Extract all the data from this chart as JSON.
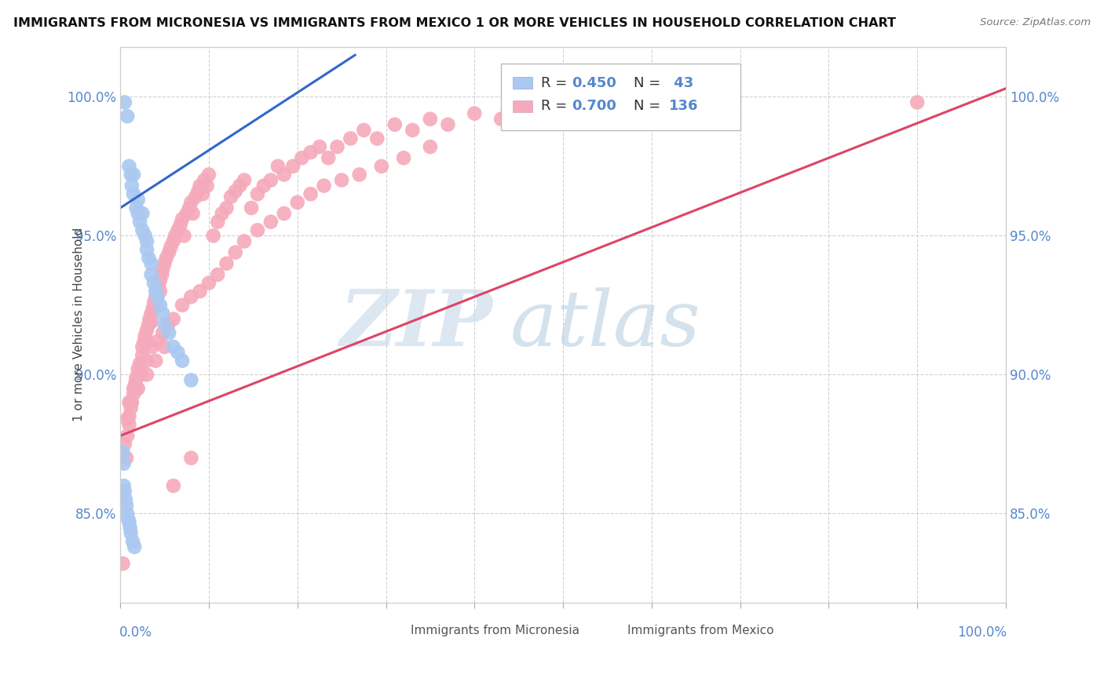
{
  "title": "IMMIGRANTS FROM MICRONESIA VS IMMIGRANTS FROM MEXICO 1 OR MORE VEHICLES IN HOUSEHOLD CORRELATION CHART",
  "source": "Source: ZipAtlas.com",
  "ylabel": "1 or more Vehicles in Household",
  "xlim": [
    0.0,
    1.0
  ],
  "ylim": [
    0.818,
    1.018
  ],
  "yticks": [
    0.85,
    0.9,
    0.95,
    1.0
  ],
  "ytick_labels": [
    "85.0%",
    "90.0%",
    "95.0%",
    "100.0%"
  ],
  "micro_color": "#aac8f0",
  "mexico_color": "#f5aabb",
  "micro_line_color": "#3366cc",
  "mexico_line_color": "#dd4466",
  "watermark_zip": "ZIP",
  "watermark_atlas": "atlas",
  "watermark_color_zip": "#c5d8ea",
  "watermark_color_atlas": "#b8cfe0",
  "background_color": "#ffffff",
  "tick_color": "#5588cc",
  "micro_x": [
    0.005,
    0.008,
    0.01,
    0.012,
    0.013,
    0.015,
    0.015,
    0.018,
    0.02,
    0.02,
    0.022,
    0.025,
    0.025,
    0.028,
    0.03,
    0.03,
    0.032,
    0.035,
    0.035,
    0.038,
    0.04,
    0.042,
    0.045,
    0.048,
    0.05,
    0.055,
    0.06,
    0.065,
    0.07,
    0.08,
    0.003,
    0.004,
    0.004,
    0.005,
    0.006,
    0.007,
    0.008,
    0.009,
    0.01,
    0.011,
    0.012,
    0.014,
    0.016
  ],
  "micro_y": [
    0.998,
    0.993,
    0.975,
    0.972,
    0.968,
    0.972,
    0.965,
    0.96,
    0.963,
    0.958,
    0.955,
    0.958,
    0.952,
    0.95,
    0.948,
    0.945,
    0.942,
    0.94,
    0.936,
    0.933,
    0.93,
    0.928,
    0.925,
    0.922,
    0.918,
    0.915,
    0.91,
    0.908,
    0.905,
    0.898,
    0.872,
    0.868,
    0.86,
    0.858,
    0.855,
    0.853,
    0.85,
    0.848,
    0.847,
    0.845,
    0.843,
    0.84,
    0.838
  ],
  "mexico_x": [
    0.003,
    0.005,
    0.007,
    0.008,
    0.01,
    0.01,
    0.012,
    0.013,
    0.015,
    0.015,
    0.017,
    0.018,
    0.02,
    0.022,
    0.022,
    0.025,
    0.025,
    0.027,
    0.028,
    0.03,
    0.03,
    0.032,
    0.033,
    0.035,
    0.035,
    0.037,
    0.038,
    0.04,
    0.04,
    0.042,
    0.043,
    0.045,
    0.045,
    0.047,
    0.048,
    0.05,
    0.052,
    0.055,
    0.057,
    0.06,
    0.062,
    0.065,
    0.068,
    0.07,
    0.072,
    0.075,
    0.078,
    0.08,
    0.082,
    0.085,
    0.088,
    0.09,
    0.093,
    0.095,
    0.098,
    0.1,
    0.105,
    0.11,
    0.115,
    0.12,
    0.125,
    0.13,
    0.135,
    0.14,
    0.148,
    0.155,
    0.162,
    0.17,
    0.178,
    0.185,
    0.195,
    0.205,
    0.215,
    0.225,
    0.235,
    0.245,
    0.26,
    0.275,
    0.29,
    0.31,
    0.33,
    0.35,
    0.37,
    0.4,
    0.43,
    0.46,
    0.5,
    0.55,
    0.6,
    0.65,
    0.008,
    0.012,
    0.018,
    0.024,
    0.03,
    0.036,
    0.042,
    0.048,
    0.054,
    0.06,
    0.07,
    0.08,
    0.09,
    0.1,
    0.11,
    0.12,
    0.13,
    0.14,
    0.155,
    0.17,
    0.185,
    0.2,
    0.215,
    0.23,
    0.25,
    0.27,
    0.295,
    0.32,
    0.35,
    0.01,
    0.02,
    0.03,
    0.04,
    0.05,
    0.06,
    0.08,
    0.9
  ],
  "mexico_y": [
    0.832,
    0.875,
    0.87,
    0.878,
    0.885,
    0.882,
    0.888,
    0.89,
    0.893,
    0.895,
    0.897,
    0.899,
    0.902,
    0.904,
    0.9,
    0.907,
    0.91,
    0.912,
    0.914,
    0.916,
    0.912,
    0.918,
    0.92,
    0.922,
    0.919,
    0.924,
    0.926,
    0.928,
    0.925,
    0.93,
    0.932,
    0.934,
    0.93,
    0.936,
    0.938,
    0.94,
    0.942,
    0.944,
    0.946,
    0.948,
    0.95,
    0.952,
    0.954,
    0.956,
    0.95,
    0.958,
    0.96,
    0.962,
    0.958,
    0.964,
    0.966,
    0.968,
    0.965,
    0.97,
    0.968,
    0.972,
    0.95,
    0.955,
    0.958,
    0.96,
    0.964,
    0.966,
    0.968,
    0.97,
    0.96,
    0.965,
    0.968,
    0.97,
    0.975,
    0.972,
    0.975,
    0.978,
    0.98,
    0.982,
    0.978,
    0.982,
    0.985,
    0.988,
    0.985,
    0.99,
    0.988,
    0.992,
    0.99,
    0.994,
    0.992,
    0.995,
    0.998,
    0.996,
    0.998,
    1.0,
    0.884,
    0.89,
    0.895,
    0.9,
    0.905,
    0.91,
    0.912,
    0.915,
    0.918,
    0.92,
    0.925,
    0.928,
    0.93,
    0.933,
    0.936,
    0.94,
    0.944,
    0.948,
    0.952,
    0.955,
    0.958,
    0.962,
    0.965,
    0.968,
    0.97,
    0.972,
    0.975,
    0.978,
    0.982,
    0.89,
    0.895,
    0.9,
    0.905,
    0.91,
    0.86,
    0.87,
    0.998
  ],
  "micro_line_x": [
    0.0,
    0.265
  ],
  "micro_line_y": [
    0.96,
    1.015
  ],
  "mexico_line_x": [
    0.0,
    1.0
  ],
  "mexico_line_y": [
    0.878,
    1.003
  ]
}
